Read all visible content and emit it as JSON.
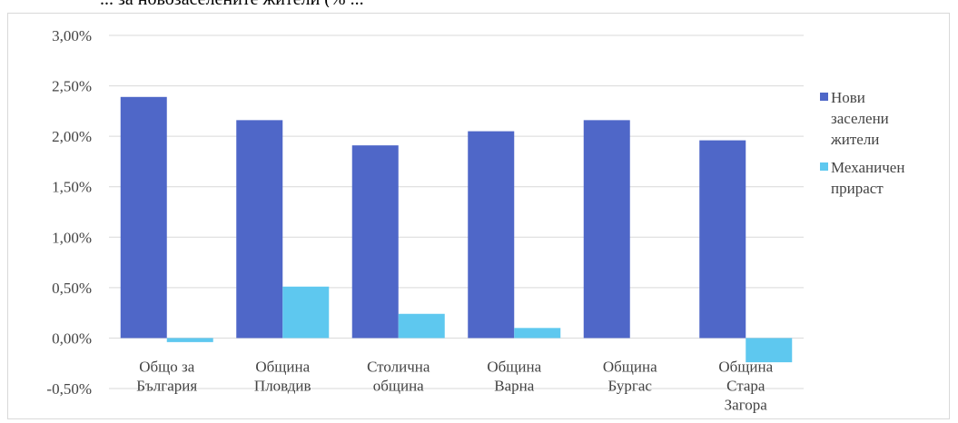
{
  "header_fragment": "... за новозаселените жители (% ...",
  "chart_data": {
    "type": "bar",
    "categories": [
      [
        "Общо за",
        "България"
      ],
      [
        "Община",
        "Пловдив"
      ],
      [
        "Столична",
        "община"
      ],
      [
        "Община",
        "Варна"
      ],
      [
        "Община",
        "Бургас"
      ],
      [
        "Община",
        "Стара",
        "Загора"
      ]
    ],
    "series": [
      {
        "name": [
          "Нови",
          "заселени",
          "жители"
        ],
        "values": [
          2.39,
          2.16,
          1.91,
          2.05,
          2.16,
          1.96
        ],
        "color": "#4f67c8"
      },
      {
        "name": [
          "Механичен",
          "прираст"
        ],
        "values": [
          -0.04,
          0.51,
          0.24,
          0.1,
          0.0,
          -0.24
        ],
        "color": "#5ec8ef"
      }
    ],
    "yticks": [
      "3,00%",
      "2,50%",
      "2,00%",
      "1,50%",
      "1,00%",
      "0,50%",
      "0,00%",
      "-0,50%"
    ],
    "ylim": [
      -0.5,
      3.0
    ],
    "grid": true,
    "legend_position": "right",
    "title": "",
    "xlabel": "",
    "ylabel": ""
  }
}
